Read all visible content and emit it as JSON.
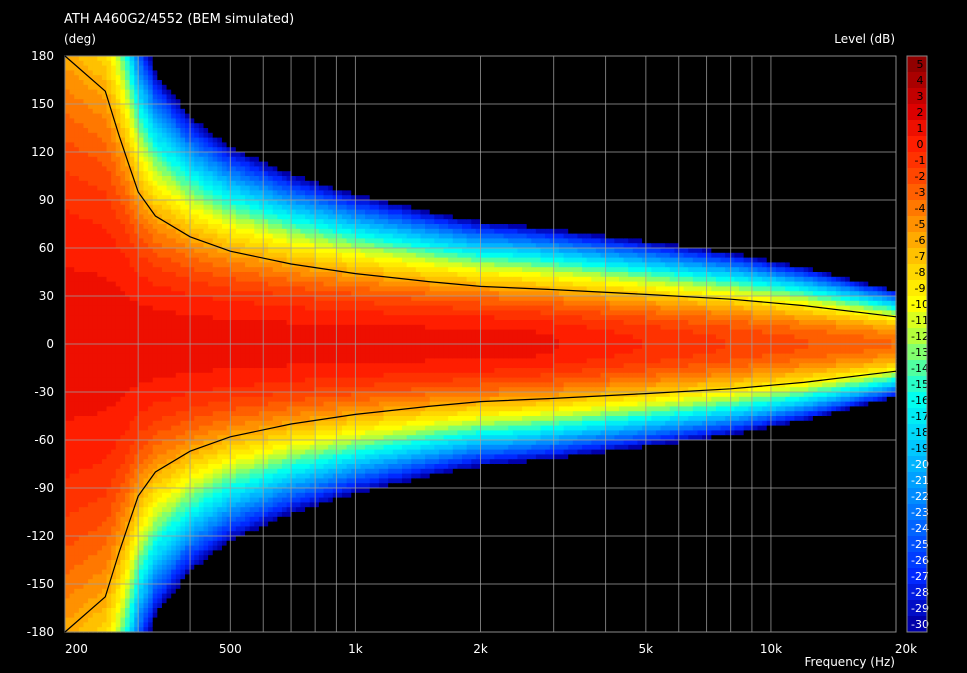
{
  "chart_data": {
    "type": "heatmap",
    "title": "ATH A460G2/4552 (BEM simulated)",
    "ylabel": "(deg)",
    "xlabel": "Frequency  (Hz)",
    "colorbar_label": "Level  (dB)",
    "x_scale": "log",
    "xlim": [
      200,
      20000
    ],
    "ylim": [
      -180,
      180
    ],
    "x_ticks": [
      200,
      300,
      400,
      500,
      600,
      700,
      800,
      900,
      1000,
      2000,
      3000,
      4000,
      5000,
      6000,
      7000,
      8000,
      9000,
      10000,
      20000
    ],
    "x_tick_labels": [
      {
        "value": 200,
        "label": "200"
      },
      {
        "value": 500,
        "label": "500"
      },
      {
        "value": 1000,
        "label": "1k"
      },
      {
        "value": 2000,
        "label": "2k"
      },
      {
        "value": 5000,
        "label": "5k"
      },
      {
        "value": 10000,
        "label": "10k"
      },
      {
        "value": 20000,
        "label": "20k"
      }
    ],
    "y_ticks": [
      180,
      150,
      120,
      90,
      60,
      30,
      0,
      -30,
      -60,
      -90,
      -120,
      -150,
      -180
    ],
    "y_tick_labels": [
      "180",
      "150",
      "120",
      "90",
      "60",
      "30",
      "0",
      "-30",
      "-60",
      "-90",
      "-120",
      "-150",
      "-180"
    ],
    "colorbar_range": [
      -30,
      6
    ],
    "colorbar_ticks": [
      "5",
      "4",
      "3",
      "2",
      "1",
      "0",
      "-1",
      "-2",
      "-3",
      "-4",
      "-5",
      "-6",
      "-7",
      "-8",
      "-9",
      "-10",
      "-11",
      "-12",
      "-13",
      "-14",
      "-15",
      "-16",
      "-17",
      "-18",
      "-19",
      "-20",
      "-21",
      "-22",
      "-23",
      "-24",
      "-25",
      "-26",
      "-27",
      "-28",
      "-29",
      "-30"
    ],
    "grid": true,
    "contour_line_minus6dB": [
      {
        "x": 200,
        "y": 180
      },
      {
        "x": 250,
        "y": 158
      },
      {
        "x": 270,
        "y": 130
      },
      {
        "x": 285,
        "y": 112
      },
      {
        "x": 300,
        "y": 95
      },
      {
        "x": 330,
        "y": 80
      },
      {
        "x": 400,
        "y": 67
      },
      {
        "x": 500,
        "y": 58
      },
      {
        "x": 700,
        "y": 50
      },
      {
        "x": 1000,
        "y": 44
      },
      {
        "x": 1500,
        "y": 39
      },
      {
        "x": 2000,
        "y": 36
      },
      {
        "x": 3000,
        "y": 34
      },
      {
        "x": 5000,
        "y": 31
      },
      {
        "x": 8000,
        "y": 28
      },
      {
        "x": 12000,
        "y": 24
      },
      {
        "x": 20000,
        "y": 17
      }
    ],
    "low_level_regions": [
      {
        "x_from": 800,
        "x_to": 1900,
        "y_center": 150
      },
      {
        "x_from": 800,
        "x_to": 1900,
        "y_center": -150
      },
      {
        "x_from": 1900,
        "x_to": 20000,
        "y_center": 130
      },
      {
        "x_from": 1900,
        "x_to": 20000,
        "y_center": -130
      }
    ]
  }
}
